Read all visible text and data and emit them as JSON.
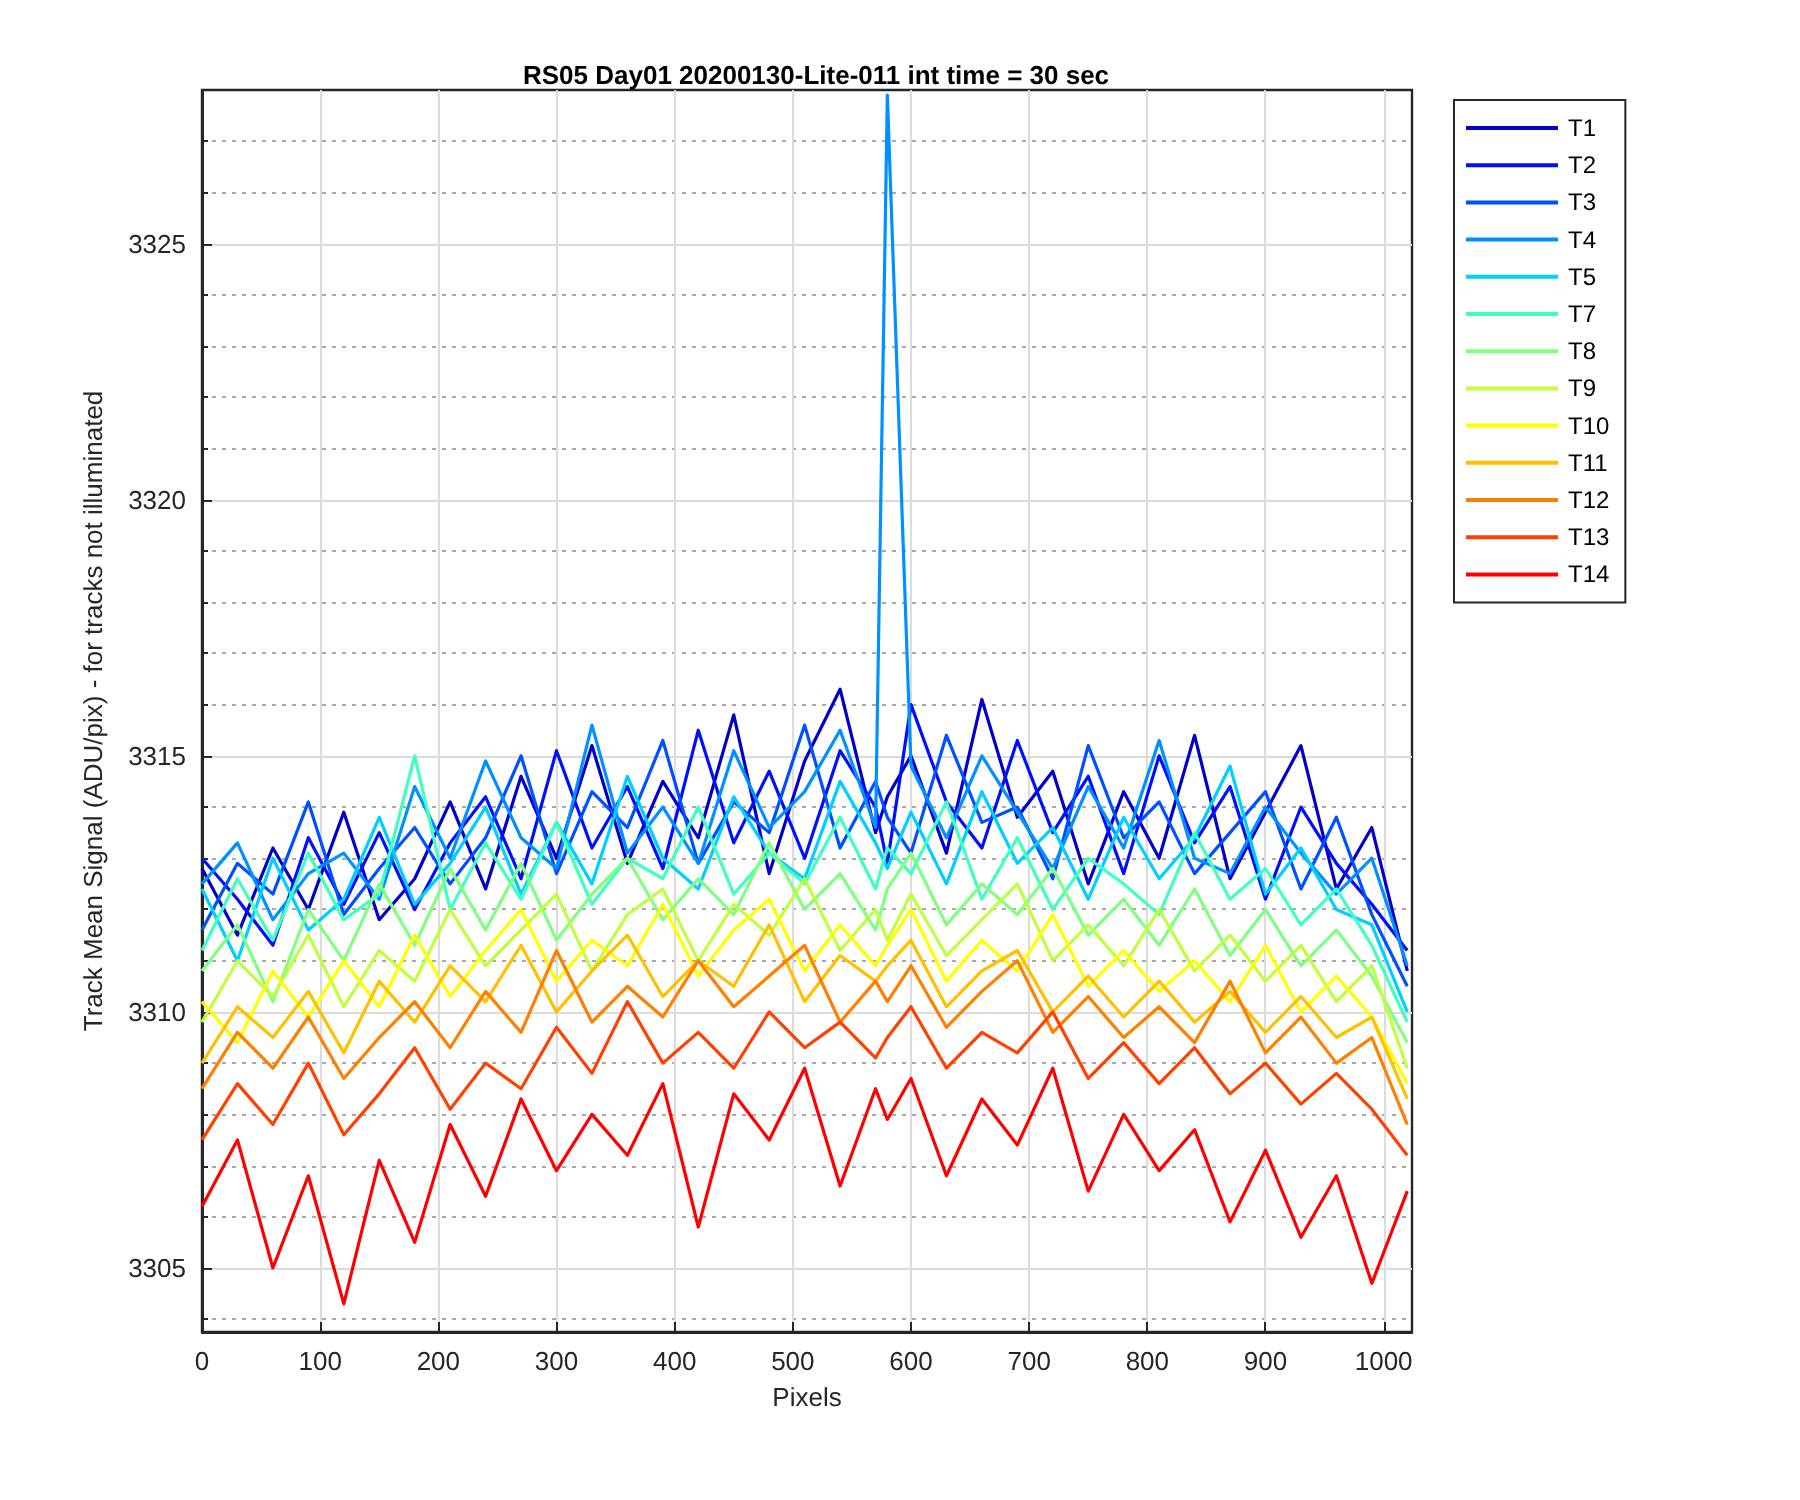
{
  "chart_data": {
    "type": "line",
    "title": "RS05 Day01 20200130-Lite-011 int time = 30 sec",
    "xlabel": "Pixels",
    "ylabel": "Track Mean Signal (ADU/pix) - for tracks not illuminated",
    "x": [
      0,
      30,
      60,
      90,
      120,
      150,
      180,
      210,
      240,
      270,
      300,
      330,
      360,
      390,
      420,
      450,
      480,
      510,
      540,
      570,
      580,
      600,
      630,
      660,
      690,
      720,
      750,
      780,
      810,
      840,
      870,
      900,
      930,
      960,
      990,
      1020
    ],
    "series": [
      {
        "name": "T1",
        "color": "#0000c8",
        "values": [
          3312.8,
          3311.5,
          3313.2,
          3312.0,
          3313.9,
          3311.8,
          3312.6,
          3314.1,
          3312.4,
          3314.6,
          3313.0,
          3315.2,
          3312.9,
          3314.5,
          3313.4,
          3315.8,
          3312.7,
          3314.9,
          3316.3,
          3313.5,
          3314.2,
          3315.0,
          3313.1,
          3316.1,
          3313.8,
          3314.7,
          3312.5,
          3314.3,
          3313.0,
          3315.4,
          3312.6,
          3313.9,
          3315.2,
          3312.4,
          3313.6,
          3310.8
        ]
      },
      {
        "name": "T2",
        "color": "#0010ff",
        "values": [
          3313.0,
          3312.2,
          3311.3,
          3313.4,
          3312.1,
          3313.5,
          3312.0,
          3313.3,
          3314.2,
          3312.6,
          3315.1,
          3313.2,
          3314.4,
          3312.8,
          3315.5,
          3313.3,
          3314.7,
          3313.0,
          3315.1,
          3314.0,
          3312.9,
          3316.0,
          3314.1,
          3313.2,
          3315.3,
          3313.5,
          3314.6,
          3312.7,
          3315.0,
          3313.3,
          3314.4,
          3312.2,
          3314.0,
          3312.9,
          3312.1,
          3311.2
        ]
      },
      {
        "name": "T3",
        "color": "#0050ff",
        "values": [
          3311.6,
          3312.9,
          3312.3,
          3314.1,
          3311.9,
          3312.8,
          3313.6,
          3312.5,
          3313.4,
          3315.0,
          3312.7,
          3314.3,
          3313.6,
          3315.3,
          3312.9,
          3314.1,
          3313.5,
          3315.6,
          3313.2,
          3314.5,
          3313.8,
          3313.1,
          3315.4,
          3313.7,
          3314.0,
          3312.6,
          3315.2,
          3313.4,
          3314.1,
          3312.7,
          3313.5,
          3314.3,
          3312.4,
          3313.8,
          3311.9,
          3310.5
        ]
      },
      {
        "name": "T4",
        "color": "#0090ff",
        "values": [
          3312.5,
          3313.3,
          3311.8,
          3312.7,
          3313.1,
          3312.2,
          3314.4,
          3313.0,
          3314.9,
          3313.4,
          3312.8,
          3315.6,
          3313.1,
          3314.0,
          3312.9,
          3315.1,
          3313.6,
          3314.3,
          3315.5,
          3313.6,
          3327.9,
          3314.8,
          3313.4,
          3315.0,
          3313.9,
          3312.8,
          3314.4,
          3313.2,
          3315.3,
          3313.0,
          3312.7,
          3314.0,
          3313.1,
          3312.3,
          3313.0,
          3310.9
        ]
      },
      {
        "name": "T5",
        "color": "#00d0ff",
        "values": [
          3312.4,
          3311.0,
          3313.0,
          3311.6,
          3312.2,
          3313.8,
          3312.1,
          3312.9,
          3314.0,
          3312.3,
          3313.7,
          3312.5,
          3314.6,
          3313.0,
          3312.4,
          3314.2,
          3313.1,
          3312.6,
          3314.5,
          3313.3,
          3312.8,
          3313.9,
          3312.5,
          3314.3,
          3312.9,
          3313.6,
          3312.2,
          3313.8,
          3312.6,
          3313.4,
          3314.8,
          3312.3,
          3313.2,
          3312.0,
          3311.7,
          3310.0
        ]
      },
      {
        "name": "T7",
        "color": "#40ffc0",
        "values": [
          3311.2,
          3312.6,
          3311.4,
          3313.1,
          3311.8,
          3312.3,
          3315.0,
          3312.0,
          3313.3,
          3312.2,
          3313.7,
          3312.1,
          3313.0,
          3312.6,
          3314.0,
          3312.3,
          3313.1,
          3312.5,
          3313.8,
          3312.4,
          3313.2,
          3312.7,
          3314.1,
          3312.2,
          3313.4,
          3312.0,
          3313.0,
          3312.5,
          3311.9,
          3313.5,
          3312.2,
          3312.8,
          3311.7,
          3312.4,
          3311.3,
          3309.8
        ]
      },
      {
        "name": "T8",
        "color": "#80ff80",
        "values": [
          3310.8,
          3311.7,
          3310.2,
          3312.0,
          3311.0,
          3312.5,
          3311.3,
          3312.8,
          3311.6,
          3312.9,
          3311.4,
          3312.3,
          3313.0,
          3311.8,
          3312.6,
          3311.9,
          3313.3,
          3312.0,
          3312.7,
          3311.6,
          3312.4,
          3313.1,
          3311.7,
          3312.5,
          3311.9,
          3312.8,
          3311.5,
          3312.2,
          3311.3,
          3312.4,
          3311.1,
          3312.0,
          3310.9,
          3311.6,
          3310.7,
          3309.4
        ]
      },
      {
        "name": "T9",
        "color": "#c0ff40",
        "values": [
          3309.8,
          3311.0,
          3310.3,
          3311.5,
          3310.1,
          3311.2,
          3310.6,
          3312.0,
          3310.9,
          3311.6,
          3312.3,
          3310.8,
          3311.9,
          3312.4,
          3311.0,
          3312.1,
          3311.5,
          3312.6,
          3311.2,
          3312.0,
          3311.4,
          3312.3,
          3311.1,
          3311.8,
          3312.5,
          3311.0,
          3311.7,
          3310.9,
          3312.0,
          3310.8,
          3311.5,
          3310.6,
          3311.3,
          3310.2,
          3310.9,
          3308.9
        ]
      },
      {
        "name": "T10",
        "color": "#ffff00",
        "values": [
          3310.2,
          3309.4,
          3310.8,
          3309.9,
          3311.0,
          3310.1,
          3311.5,
          3310.3,
          3311.2,
          3312.0,
          3310.6,
          3311.4,
          3310.9,
          3312.1,
          3310.7,
          3311.6,
          3312.2,
          3310.8,
          3311.7,
          3310.9,
          3311.3,
          3312.0,
          3310.6,
          3311.4,
          3310.8,
          3311.9,
          3310.5,
          3311.2,
          3310.4,
          3311.0,
          3310.2,
          3311.3,
          3310.0,
          3310.7,
          3309.9,
          3308.6
        ]
      },
      {
        "name": "T11",
        "color": "#ffc000",
        "values": [
          3309.0,
          3310.1,
          3309.5,
          3310.4,
          3309.2,
          3310.6,
          3309.8,
          3310.9,
          3310.2,
          3311.3,
          3310.0,
          3310.8,
          3311.5,
          3310.3,
          3311.0,
          3310.5,
          3311.7,
          3310.2,
          3311.1,
          3310.6,
          3310.9,
          3311.4,
          3310.1,
          3310.8,
          3311.2,
          3310.0,
          3310.7,
          3309.9,
          3310.6,
          3309.8,
          3310.4,
          3309.6,
          3310.3,
          3309.5,
          3309.9,
          3308.3
        ]
      },
      {
        "name": "T12",
        "color": "#ff8000",
        "values": [
          3308.5,
          3309.6,
          3308.9,
          3309.9,
          3308.7,
          3309.5,
          3310.2,
          3309.3,
          3310.4,
          3309.6,
          3311.2,
          3309.8,
          3310.5,
          3309.9,
          3311.0,
          3310.1,
          3310.7,
          3311.3,
          3309.8,
          3310.6,
          3310.2,
          3310.9,
          3309.7,
          3310.4,
          3311.0,
          3309.6,
          3310.3,
          3309.5,
          3310.1,
          3309.4,
          3310.6,
          3309.2,
          3309.9,
          3309.0,
          3309.5,
          3307.8
        ]
      },
      {
        "name": "T13",
        "color": "#ff4000",
        "values": [
          3307.5,
          3308.6,
          3307.8,
          3309.0,
          3307.6,
          3308.4,
          3309.3,
          3308.1,
          3309.0,
          3308.5,
          3309.7,
          3308.8,
          3310.2,
          3309.0,
          3309.6,
          3308.9,
          3310.0,
          3309.3,
          3309.8,
          3309.1,
          3309.5,
          3310.1,
          3308.9,
          3309.6,
          3309.2,
          3310.0,
          3308.7,
          3309.4,
          3308.6,
          3309.3,
          3308.4,
          3309.0,
          3308.2,
          3308.8,
          3308.1,
          3307.2
        ]
      },
      {
        "name": "T14",
        "color": "#ff0000",
        "values": [
          3306.2,
          3307.5,
          3305.0,
          3306.8,
          3304.3,
          3307.1,
          3305.5,
          3307.8,
          3306.4,
          3308.3,
          3306.9,
          3308.0,
          3307.2,
          3308.6,
          3305.8,
          3308.4,
          3307.5,
          3308.9,
          3306.6,
          3308.5,
          3307.9,
          3308.7,
          3306.8,
          3308.3,
          3307.4,
          3308.9,
          3306.5,
          3308.0,
          3306.9,
          3307.7,
          3305.9,
          3307.3,
          3305.6,
          3306.8,
          3304.7,
          3306.5
        ]
      }
    ],
    "xlim": [
      0,
      1024
    ],
    "ylim": [
      3303.75,
      3328
    ],
    "xticks": [
      0,
      100,
      200,
      300,
      400,
      500,
      600,
      700,
      800,
      900,
      1000
    ],
    "yticks": [
      {
        "value": 3304,
        "label": null
      },
      3305,
      {
        "value": 3306,
        "label": null
      },
      {
        "value": 3307,
        "label": null
      },
      {
        "value": 3308,
        "label": null
      },
      {
        "value": 3309,
        "label": null
      },
      3310,
      {
        "value": 3311,
        "label": null
      },
      {
        "value": 3312,
        "label": null
      },
      {
        "value": 3313,
        "label": null
      },
      {
        "value": 3314,
        "label": null
      },
      3315,
      {
        "value": 3316,
        "label": null
      },
      {
        "value": 3317,
        "label": null
      },
      {
        "value": 3318,
        "label": null
      },
      {
        "value": 3319,
        "label": null
      },
      3320,
      {
        "value": 3321,
        "label": null
      },
      {
        "value": 3322,
        "label": null
      },
      {
        "value": 3323,
        "label": null
      },
      {
        "value": 3324,
        "label": null
      },
      3325,
      {
        "value": 3326,
        "label": null
      },
      {
        "value": 3327,
        "label": null
      }
    ],
    "grid": true,
    "legend": "right",
    "marker": "none"
  }
}
